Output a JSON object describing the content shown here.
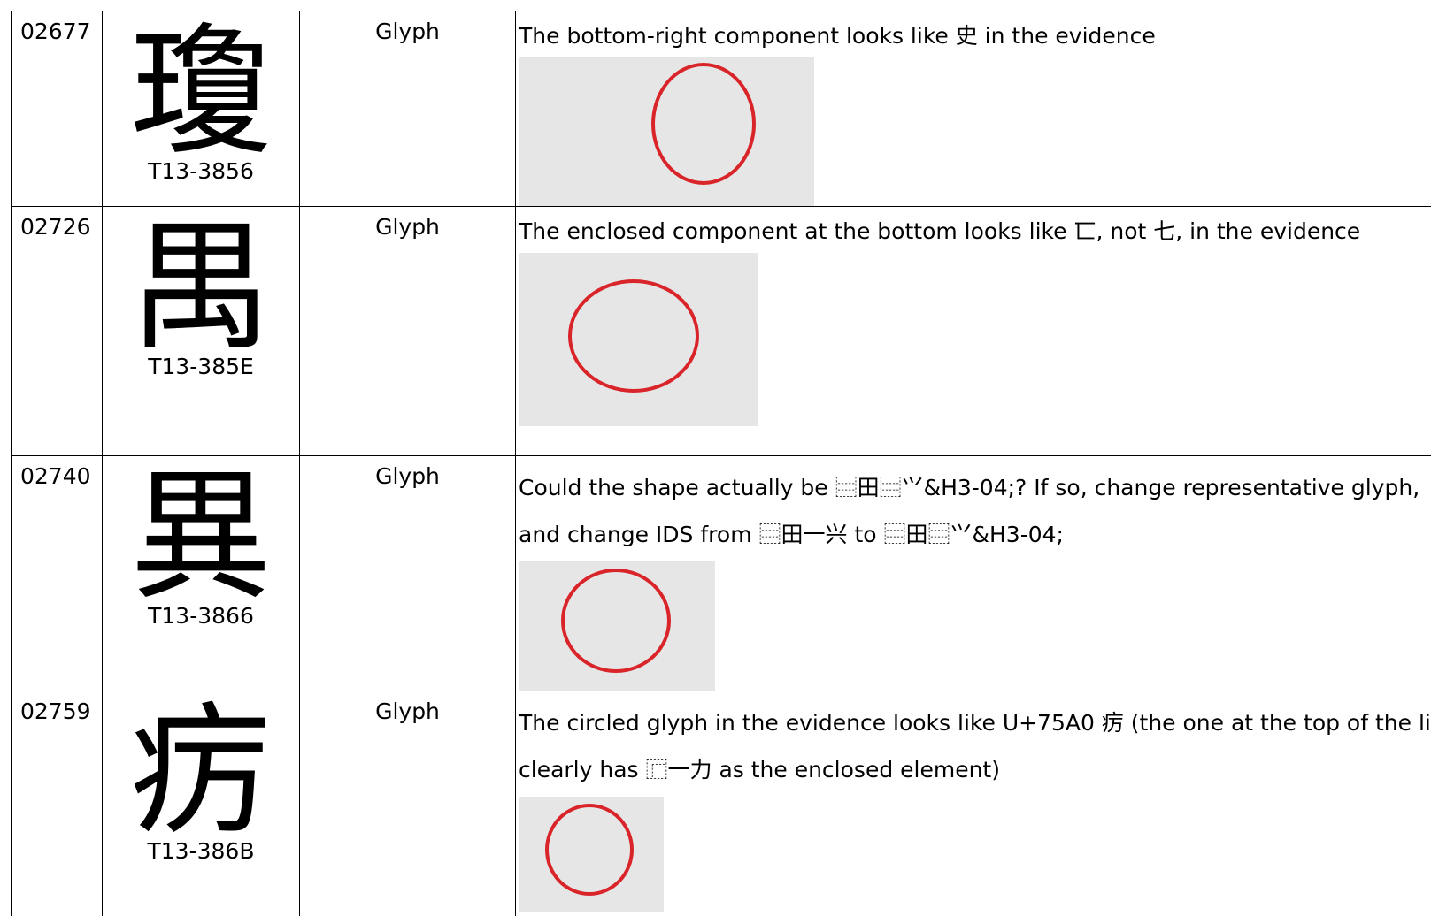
{
  "table": {
    "rows": [
      {
        "id": "02677",
        "glyph": "瓊",
        "source": "T13-3856",
        "type": "Glyph",
        "comment": "The bottom-right component looks like 史 in the evidence"
      },
      {
        "id": "02726",
        "glyph": "禺",
        "source": "T13-385E",
        "type": "Glyph",
        "comment": "The enclosed component at the bottom looks like 匸, not 七, in the evidence"
      },
      {
        "id": "02740",
        "glyph": "異",
        "source": "T13-3866",
        "type": "Glyph",
        "comment": "Could the shape actually be ⿳田⿳⺍&H3-04;? If so, change representative glyph, and change IDS from ⿳田一兴 to ⿳田⿳⺍&H3-04;"
      },
      {
        "id": "02759",
        "glyph": "疠",
        "source": "T13-386B",
        "type": "Glyph",
        "comment": "The circled glyph in the evidence looks like U+75A0 疠 (the one at the top of the line clearly has ⿸一力 as the enclosed element)"
      }
    ]
  }
}
